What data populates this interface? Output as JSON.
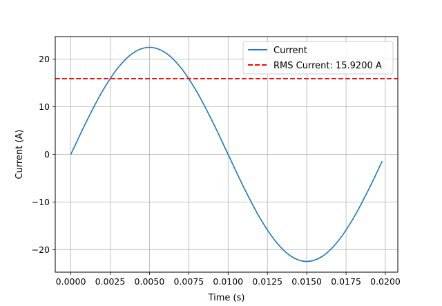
{
  "chart_data": {
    "type": "line",
    "title": "",
    "xlabel": "Time (s)",
    "ylabel": "Current (A)",
    "xlim": [
      -0.00099,
      0.02079
    ],
    "ylim": [
      -24.75,
      24.75
    ],
    "x_ticks": [
      0.0,
      0.0025,
      0.005,
      0.0075,
      0.01,
      0.0125,
      0.015,
      0.0175,
      0.02
    ],
    "x_tick_labels": [
      "0.0000",
      "0.0025",
      "0.0050",
      "0.0075",
      "0.0100",
      "0.0125",
      "0.0150",
      "0.0175",
      "0.0200"
    ],
    "y_ticks": [
      -20,
      -10,
      0,
      10,
      20
    ],
    "y_tick_labels": [
      "−20",
      "−10",
      "0",
      "10",
      "20"
    ],
    "grid": true,
    "legend_position": "upper right",
    "series": [
      {
        "name": "Current",
        "style": "solid",
        "color": "#1f77b4",
        "x": [
          0.0,
          0.001,
          0.002,
          0.003,
          0.004,
          0.005,
          0.006,
          0.007,
          0.008,
          0.009,
          0.01,
          0.011,
          0.012,
          0.013,
          0.014,
          0.015,
          0.016,
          0.017,
          0.018,
          0.019,
          0.0198
        ],
        "y": [
          0.0,
          6.95,
          13.22,
          18.2,
          21.4,
          22.5,
          21.4,
          18.2,
          13.22,
          6.95,
          0.0,
          -6.95,
          -13.22,
          -18.2,
          -21.4,
          -22.5,
          -21.4,
          -18.2,
          -13.22,
          -6.95,
          -1.41
        ]
      },
      {
        "name": "RMS Current: 15.9200 A",
        "style": "dashed",
        "color": "#ff0000",
        "hline": 15.92
      }
    ]
  }
}
